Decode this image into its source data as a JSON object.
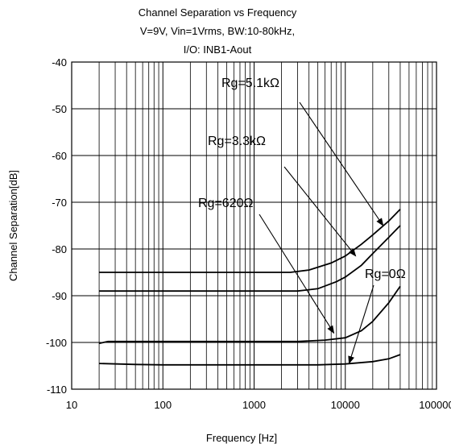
{
  "chart_data": {
    "type": "line",
    "title": [
      "Channel Separation vs Frequency",
      "V=9V, Vin=1Vrms, BW:10-80kHz,",
      "I/O: INB1-Aout"
    ],
    "xlabel": "Frequency [Hz]",
    "ylabel": "Channel Separation[dB]",
    "x_scale": "log",
    "xlim": [
      10,
      100000
    ],
    "ylim": [
      -110,
      -40
    ],
    "x_ticks": [
      "10",
      "100",
      "1000",
      "10000",
      "100000"
    ],
    "y_ticks": [
      "-40",
      "-50",
      "-60",
      "-70",
      "-80",
      "-90",
      "-100",
      "-110"
    ],
    "grid": true,
    "series": [
      {
        "name": "Rg=5.1kΩ",
        "x": [
          20,
          100,
          500,
          1000,
          2500,
          4000,
          7000,
          10000,
          15000,
          20000,
          30000,
          40000
        ],
        "y": [
          -85,
          -85,
          -85,
          -85,
          -85,
          -84.5,
          -83,
          -81.5,
          -79,
          -77,
          -74,
          -71.5
        ]
      },
      {
        "name": "Rg=3.3kΩ",
        "x": [
          20,
          100,
          500,
          1000,
          3000,
          5000,
          8000,
          10000,
          15000,
          20000,
          30000,
          40000
        ],
        "y": [
          -89,
          -89,
          -89,
          -89,
          -89,
          -88.5,
          -87,
          -86,
          -83.5,
          -81,
          -77.5,
          -75
        ]
      },
      {
        "name": "Rg=620Ω",
        "x": [
          20,
          25,
          100,
          500,
          1000,
          3000,
          6000,
          10000,
          15000,
          20000,
          30000,
          40000
        ],
        "y": [
          -100.2,
          -99.8,
          -99.8,
          -99.8,
          -99.8,
          -99.8,
          -99.5,
          -99,
          -97.5,
          -95.5,
          -91.5,
          -88
        ]
      },
      {
        "name": "Rg=0Ω",
        "x": [
          20,
          50,
          100,
          500,
          1000,
          2000,
          5000,
          10000,
          20000,
          30000,
          40000
        ],
        "y": [
          -104.5,
          -104.7,
          -104.8,
          -104.8,
          -104.8,
          -104.8,
          -104.8,
          -104.6,
          -104.1,
          -103.5,
          -102.6
        ]
      }
    ],
    "annotations": [
      {
        "text": "Rg=5.1kΩ",
        "arrow_to": [
          26000,
          -75
        ]
      },
      {
        "text": "Rg=3.3kΩ",
        "arrow_to": [
          13000,
          -81.5
        ]
      },
      {
        "text": "Rg=620Ω",
        "arrow_to": [
          7500,
          -98
        ]
      },
      {
        "text": "Rg=0Ω",
        "arrow_to": [
          11000,
          -104.5
        ]
      }
    ]
  }
}
